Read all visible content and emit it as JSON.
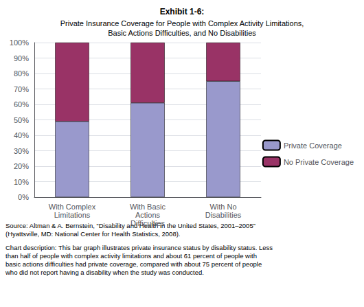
{
  "chart_data": {
    "type": "bar",
    "stacked": true,
    "title": "Exhibit 1-6:",
    "subtitle": "Private Insurance Coverage for People with Complex Activity Limitations,\nBasic Actions Difficulties, and No Disabilities",
    "categories": [
      "With Complex\nLimitations",
      "With Basic\nActions\nDifficulties",
      "With No\nDisabilities"
    ],
    "series": [
      {
        "name": "Private Coverage",
        "color": "#9999cc",
        "values": [
          49,
          61,
          75
        ]
      },
      {
        "name": "No Private Coverage",
        "color": "#993366",
        "values": [
          51,
          39,
          25
        ]
      }
    ],
    "ylim": [
      0,
      100
    ],
    "yticks": [
      {
        "value": 0,
        "label": "0%"
      },
      {
        "value": 10,
        "label": "10%"
      },
      {
        "value": 20,
        "label": "20%"
      },
      {
        "value": 30,
        "label": "30%"
      },
      {
        "value": 40,
        "label": "40%"
      },
      {
        "value": 50,
        "label": "50%"
      },
      {
        "value": 60,
        "label": "60%"
      },
      {
        "value": 70,
        "label": "70%"
      },
      {
        "value": 80,
        "label": "80%"
      },
      {
        "value": 90,
        "label": "90%"
      },
      {
        "value": 100,
        "label": "100%"
      }
    ],
    "grid": true,
    "legend": "right",
    "annotations": [
      "Source: Altman & A. Bernstein, “Disability and Health in the United States, 2001–2005”\n(Hyattsville, MD: National Center for Health Statistics, 2008).",
      "Chart description: This bar graph illustrates private insurance status by disability status. Less\nthan half of people with complex activity limitations and about 61 percent of people with\nbasic actions difficulties had private coverage, compared with about 75 percent of people\nwho did not report having a disability when the study was conducted."
    ]
  }
}
